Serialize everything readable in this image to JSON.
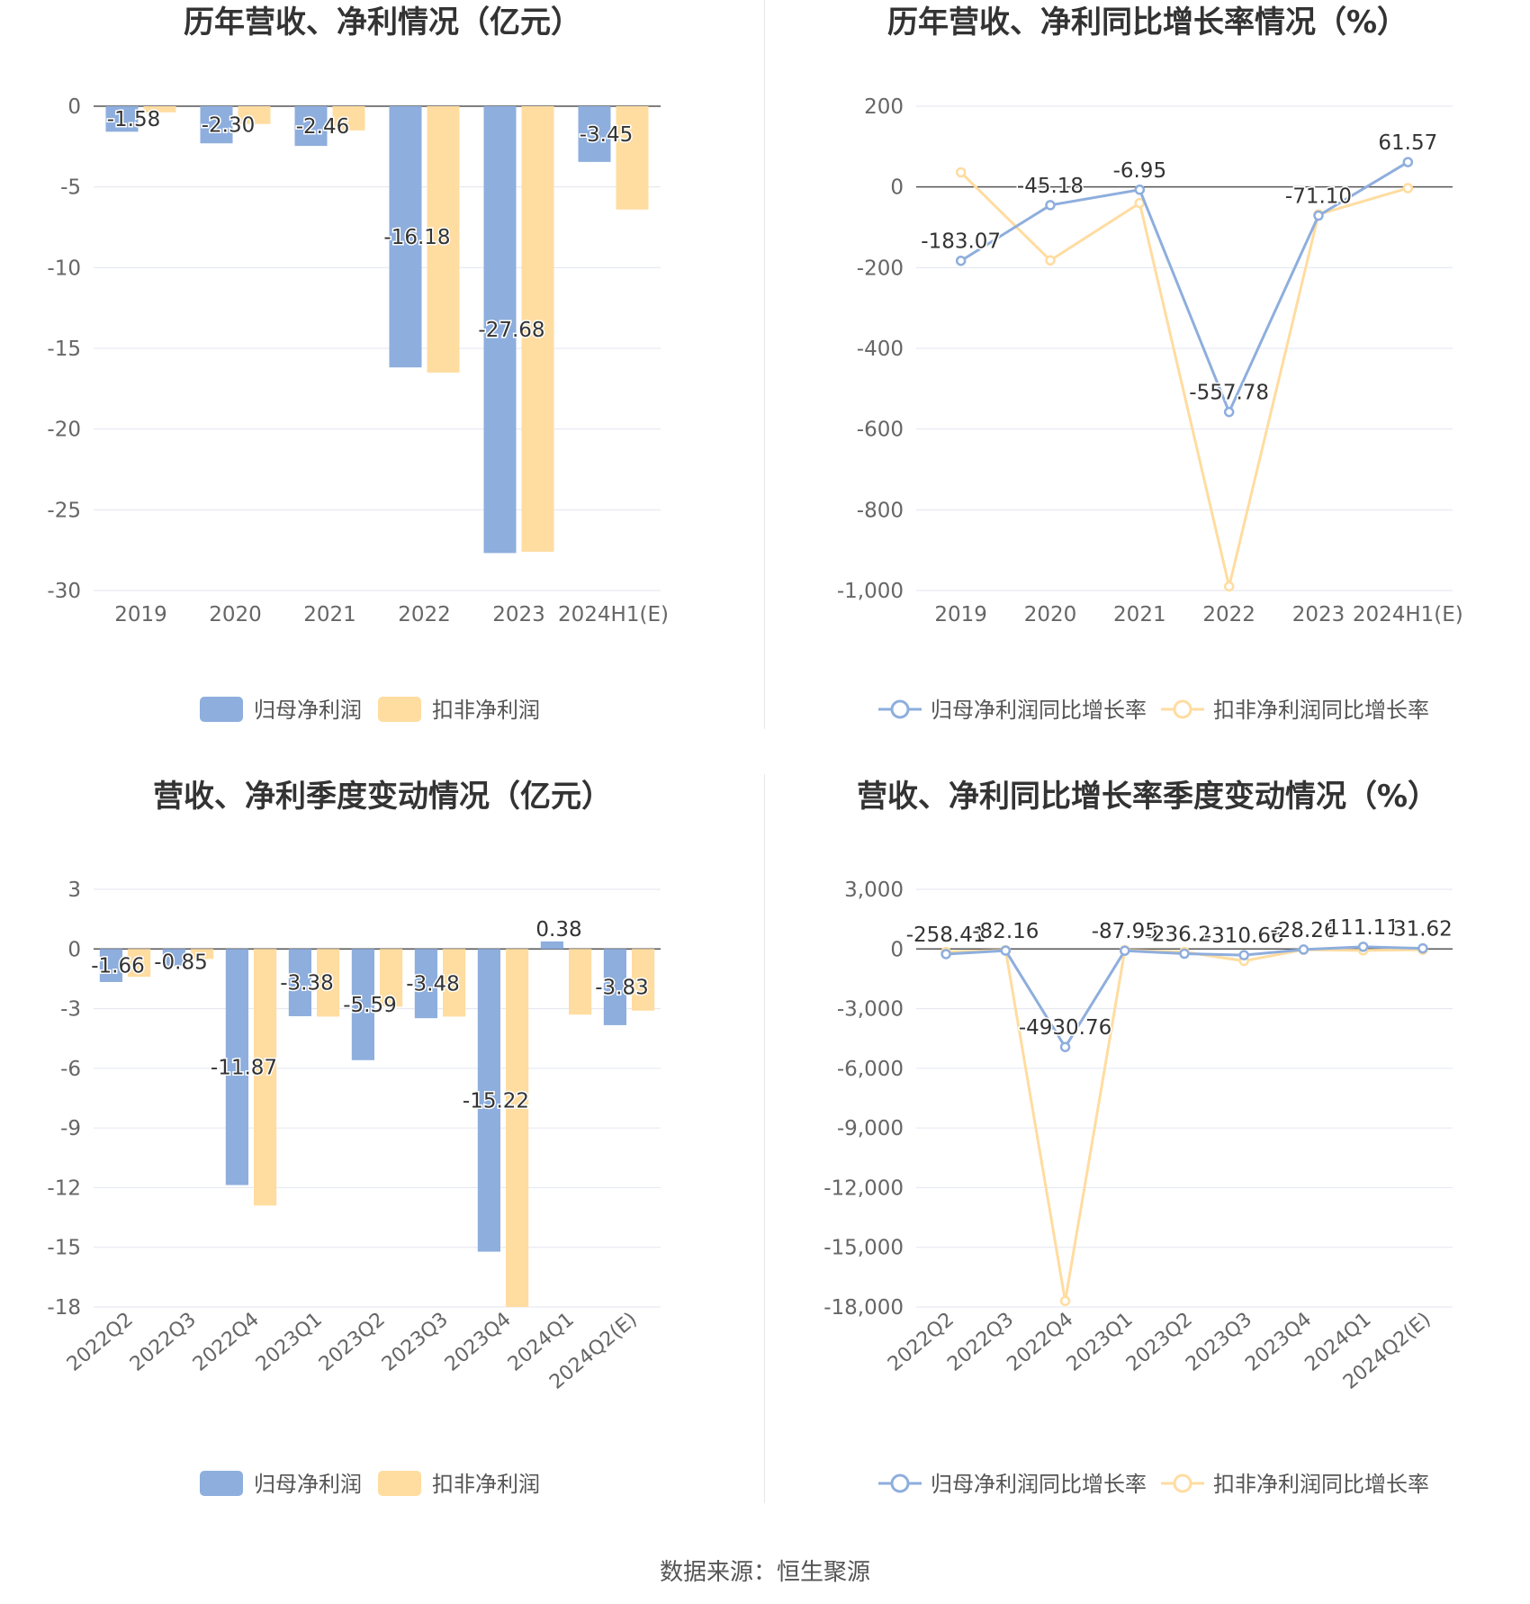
{
  "source": "数据来源：恒生聚源",
  "colors": {
    "series1": "#8eaedd",
    "series2": "#ffdca0",
    "grid": "#e3e6f0",
    "axis": "#555555",
    "label": "#333333",
    "tick": "#666666"
  },
  "chart_data": [
    {
      "type": "bar",
      "title": "历年营收、净利情况（亿元）",
      "categories": [
        "2019",
        "2020",
        "2021",
        "2022",
        "2023",
        "2024H1(E)"
      ],
      "yticks": [
        0,
        -5,
        -10,
        -15,
        -20,
        -25,
        -30
      ],
      "ylim": [
        -30,
        0
      ],
      "series": [
        {
          "name": "归母净利润",
          "values": [
            -1.58,
            -2.3,
            -2.46,
            -16.18,
            -27.68,
            -3.45
          ],
          "labels": [
            "-1.58",
            "-2.30",
            "-2.46",
            "-16.18",
            "-27.68",
            "-3.45"
          ]
        },
        {
          "name": "扣非净利润",
          "values": [
            -0.38,
            -1.1,
            -1.5,
            -16.5,
            -27.6,
            -6.4
          ]
        }
      ],
      "legend": "bottom",
      "grid": true
    },
    {
      "type": "line",
      "title": "历年营收、净利同比增长率情况（%）",
      "categories": [
        "2019",
        "2020",
        "2021",
        "2022",
        "2023",
        "2024H1(E)"
      ],
      "yticks": [
        200,
        0,
        -200,
        -400,
        -600,
        -800,
        -1000
      ],
      "ytick_labels": [
        "200",
        "0",
        "-200",
        "-400",
        "-600",
        "-800",
        "-1,000"
      ],
      "ylim": [
        -1000,
        200
      ],
      "series": [
        {
          "name": "归母净利润同比增长率",
          "values": [
            -183.07,
            -45.18,
            -6.95,
            -557.78,
            -71.1,
            61.57
          ],
          "labels": [
            "-183.07",
            "-45.18",
            "-6.95",
            "-557.78",
            "-71.10",
            "61.57"
          ]
        },
        {
          "name": "扣非净利润同比增长率",
          "values": [
            36,
            -182,
            -40,
            -990,
            -68,
            -3
          ]
        }
      ],
      "legend": "bottom",
      "grid": true
    },
    {
      "type": "bar",
      "title": "营收、净利季度变动情况（亿元）",
      "categories": [
        "2022Q2",
        "2022Q3",
        "2022Q4",
        "2023Q1",
        "2023Q2",
        "2023Q3",
        "2023Q4",
        "2024Q1",
        "2024Q2(E)"
      ],
      "yticks": [
        3,
        0,
        -3,
        -6,
        -9,
        -12,
        -15,
        -18
      ],
      "ylim": [
        -18,
        3
      ],
      "series": [
        {
          "name": "归母净利润",
          "values": [
            -1.66,
            -0.85,
            -11.87,
            -3.38,
            -5.59,
            -3.48,
            -15.22,
            0.38,
            -3.83
          ],
          "labels": [
            "-1.66",
            "-0.85",
            "-11.87",
            "-3.38",
            "-5.59",
            "-3.48",
            "-15.22",
            "0.38",
            "-3.83"
          ]
        },
        {
          "name": "扣非净利润",
          "values": [
            -1.4,
            -0.5,
            -12.9,
            -3.4,
            -2.9,
            -3.4,
            -18.0,
            -3.3,
            -3.1
          ]
        }
      ],
      "legend": "bottom",
      "grid": true
    },
    {
      "type": "line",
      "title": "营收、净利同比增长率季度变动情况（%）",
      "categories": [
        "2022Q2",
        "2022Q3",
        "2022Q4",
        "2023Q1",
        "2023Q2",
        "2023Q3",
        "2023Q4",
        "2024Q1",
        "2024Q2(E)"
      ],
      "yticks": [
        3000,
        0,
        -3000,
        -6000,
        -9000,
        -12000,
        -15000,
        -18000
      ],
      "ytick_labels": [
        "3,000",
        "0",
        "-3,000",
        "-6,000",
        "-9,000",
        "-12,000",
        "-15,000",
        "-18,000"
      ],
      "ylim": [
        -18000,
        3000
      ],
      "series": [
        {
          "name": "归母净利润同比增长率",
          "values": [
            -258.41,
            -82.16,
            -4930.76,
            -87.95,
            -236.23,
            -310.66,
            -28.26,
            111.11,
            31.62
          ],
          "labels": [
            "-258.41",
            "-82.16",
            "-4930.76",
            "-87.95",
            "-236.23",
            "-310.66",
            "-28.26",
            "111.11",
            "31.62"
          ]
        },
        {
          "name": "扣非净利润同比增长率",
          "values": [
            -150,
            -60,
            -17700,
            -60,
            -150,
            -600,
            -40,
            -70,
            -40
          ]
        }
      ],
      "legend": "bottom",
      "grid": true
    }
  ]
}
